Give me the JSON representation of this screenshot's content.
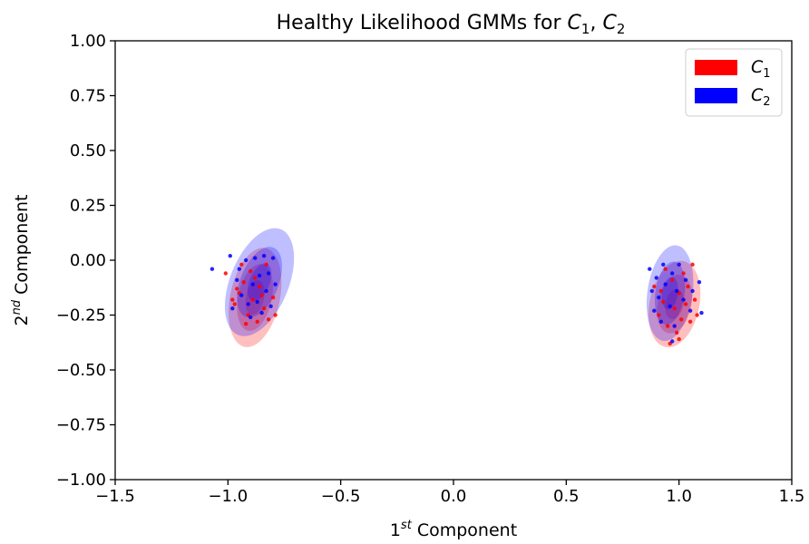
{
  "chart_data": {
    "type": "scatter",
    "title": {
      "main": "Healthy Likelihood GMMs for ",
      "c1": "C",
      "s1": "1",
      "sep": ", ",
      "c2": "C",
      "s2": "2"
    },
    "xlabel": {
      "base": "1",
      "sup": "st",
      "rest": " Component"
    },
    "ylabel": {
      "base": "2",
      "sup": "nd",
      "rest": " Component"
    },
    "xlim": [
      -1.5,
      1.5
    ],
    "ylim": [
      -1.0,
      1.0
    ],
    "x_ticks": [
      -1.5,
      -1.0,
      -0.5,
      0.0,
      0.5,
      1.0,
      1.5
    ],
    "x_tick_labels": [
      "−1.5",
      "−1.0",
      "−0.5",
      "0.0",
      "0.5",
      "1.0",
      "1.5"
    ],
    "y_ticks": [
      1.0,
      0.75,
      0.5,
      0.25,
      0.0,
      -0.25,
      -0.5,
      -0.75,
      -1.0
    ],
    "y_tick_labels": [
      "1.00",
      "0.75",
      "0.50",
      "0.25",
      "0.00",
      "−0.25",
      "−0.50",
      "−0.75",
      "−1.00"
    ],
    "grid": false,
    "legend_position": "top-right",
    "series": [
      {
        "name": "C1",
        "color": "#ff0000",
        "ellipses": [
          {
            "cx": -0.88,
            "cy": -0.17,
            "rx": 0.11,
            "ry": 0.23,
            "rot": 12
          },
          {
            "cx": -0.88,
            "cy": -0.17,
            "rx": 0.075,
            "ry": 0.155,
            "rot": 12
          },
          {
            "cx": -0.88,
            "cy": -0.17,
            "rx": 0.04,
            "ry": 0.08,
            "rot": 12
          },
          {
            "cx": 0.98,
            "cy": -0.2,
            "rx": 0.11,
            "ry": 0.2,
            "rot": 12
          },
          {
            "cx": 0.98,
            "cy": -0.2,
            "rx": 0.075,
            "ry": 0.135,
            "rot": 12
          },
          {
            "cx": 0.98,
            "cy": -0.2,
            "rx": 0.04,
            "ry": 0.07,
            "rot": 12
          }
        ],
        "points": [
          [
            -1.01,
            -0.06
          ],
          [
            -0.97,
            -0.2
          ],
          [
            -0.95,
            -0.15
          ],
          [
            -0.93,
            -0.1
          ],
          [
            -0.91,
            -0.25
          ],
          [
            -0.9,
            -0.05
          ],
          [
            -0.89,
            -0.18
          ],
          [
            -0.87,
            -0.28
          ],
          [
            -0.86,
            -0.12
          ],
          [
            -0.84,
            -0.22
          ],
          [
            -0.83,
            -0.02
          ],
          [
            -0.82,
            -0.27
          ],
          [
            -0.8,
            -0.17
          ],
          [
            -0.79,
            -0.25
          ],
          [
            -0.94,
            -0.02
          ],
          [
            -0.96,
            -0.13
          ],
          [
            -0.92,
            -0.29
          ],
          [
            -0.88,
            -0.08
          ],
          [
            -0.85,
            -0.16
          ],
          [
            -0.98,
            -0.18
          ],
          [
            0.89,
            -0.12
          ],
          [
            0.91,
            -0.25
          ],
          [
            0.93,
            -0.19
          ],
          [
            0.95,
            -0.3
          ],
          [
            0.96,
            -0.38
          ],
          [
            0.97,
            -0.09
          ],
          [
            0.98,
            -0.22
          ],
          [
            0.99,
            -0.33
          ],
          [
            1.0,
            -0.15
          ],
          [
            1.01,
            -0.27
          ],
          [
            1.02,
            -0.06
          ],
          [
            1.03,
            -0.2
          ],
          [
            1.04,
            -0.12
          ],
          [
            1.05,
            -0.28
          ],
          [
            1.07,
            -0.18
          ],
          [
            1.08,
            -0.25
          ],
          [
            0.94,
            -0.04
          ],
          [
            1.0,
            -0.36
          ],
          [
            0.92,
            -0.14
          ],
          [
            1.06,
            -0.02
          ]
        ]
      },
      {
        "name": "C2",
        "color": "#0000ff",
        "ellipses": [
          {
            "cx": -0.86,
            "cy": -0.1,
            "rx": 0.13,
            "ry": 0.26,
            "rot": 22
          },
          {
            "cx": -0.86,
            "cy": -0.1,
            "rx": 0.085,
            "ry": 0.17,
            "rot": 22
          },
          {
            "cx": -0.86,
            "cy": -0.1,
            "rx": 0.045,
            "ry": 0.09,
            "rot": 22
          },
          {
            "cx": 0.96,
            "cy": -0.15,
            "rx": 0.1,
            "ry": 0.22,
            "rot": 8
          },
          {
            "cx": 0.96,
            "cy": -0.15,
            "rx": 0.065,
            "ry": 0.145,
            "rot": 8
          },
          {
            "cx": 0.96,
            "cy": -0.15,
            "rx": 0.035,
            "ry": 0.075,
            "rot": 8
          }
        ],
        "points": [
          [
            -1.07,
            -0.04
          ],
          [
            -0.99,
            0.02
          ],
          [
            -0.98,
            -0.22
          ],
          [
            -0.96,
            -0.09
          ],
          [
            -0.94,
            -0.16
          ],
          [
            -0.92,
            0.0
          ],
          [
            -0.91,
            -0.2
          ],
          [
            -0.89,
            -0.11
          ],
          [
            -0.88,
            0.01
          ],
          [
            -0.87,
            -0.19
          ],
          [
            -0.86,
            -0.07
          ],
          [
            -0.85,
            -0.24
          ],
          [
            -0.84,
            0.02
          ],
          [
            -0.83,
            -0.14
          ],
          [
            -0.82,
            -0.06
          ],
          [
            -0.81,
            -0.21
          ],
          [
            -0.8,
            0.01
          ],
          [
            -0.79,
            -0.11
          ],
          [
            -0.9,
            -0.26
          ],
          [
            -0.95,
            -0.04
          ],
          [
            0.87,
            -0.04
          ],
          [
            0.88,
            -0.14
          ],
          [
            0.89,
            -0.23
          ],
          [
            0.9,
            -0.08
          ],
          [
            0.91,
            -0.17
          ],
          [
            0.92,
            -0.28
          ],
          [
            0.93,
            -0.02
          ],
          [
            0.94,
            -0.11
          ],
          [
            0.96,
            -0.21
          ],
          [
            0.97,
            -0.06
          ],
          [
            0.98,
            -0.3
          ],
          [
            0.99,
            -0.14
          ],
          [
            1.0,
            -0.02
          ],
          [
            1.02,
            -0.18
          ],
          [
            1.03,
            -0.09
          ],
          [
            1.05,
            -0.23
          ],
          [
            1.06,
            -0.14
          ],
          [
            1.09,
            -0.1
          ],
          [
            1.1,
            -0.24
          ],
          [
            0.97,
            -0.37
          ]
        ]
      }
    ],
    "legend": [
      {
        "base": "C",
        "sub": "1",
        "color": "#ff0000"
      },
      {
        "base": "C",
        "sub": "2",
        "color": "#0000ff"
      }
    ]
  }
}
